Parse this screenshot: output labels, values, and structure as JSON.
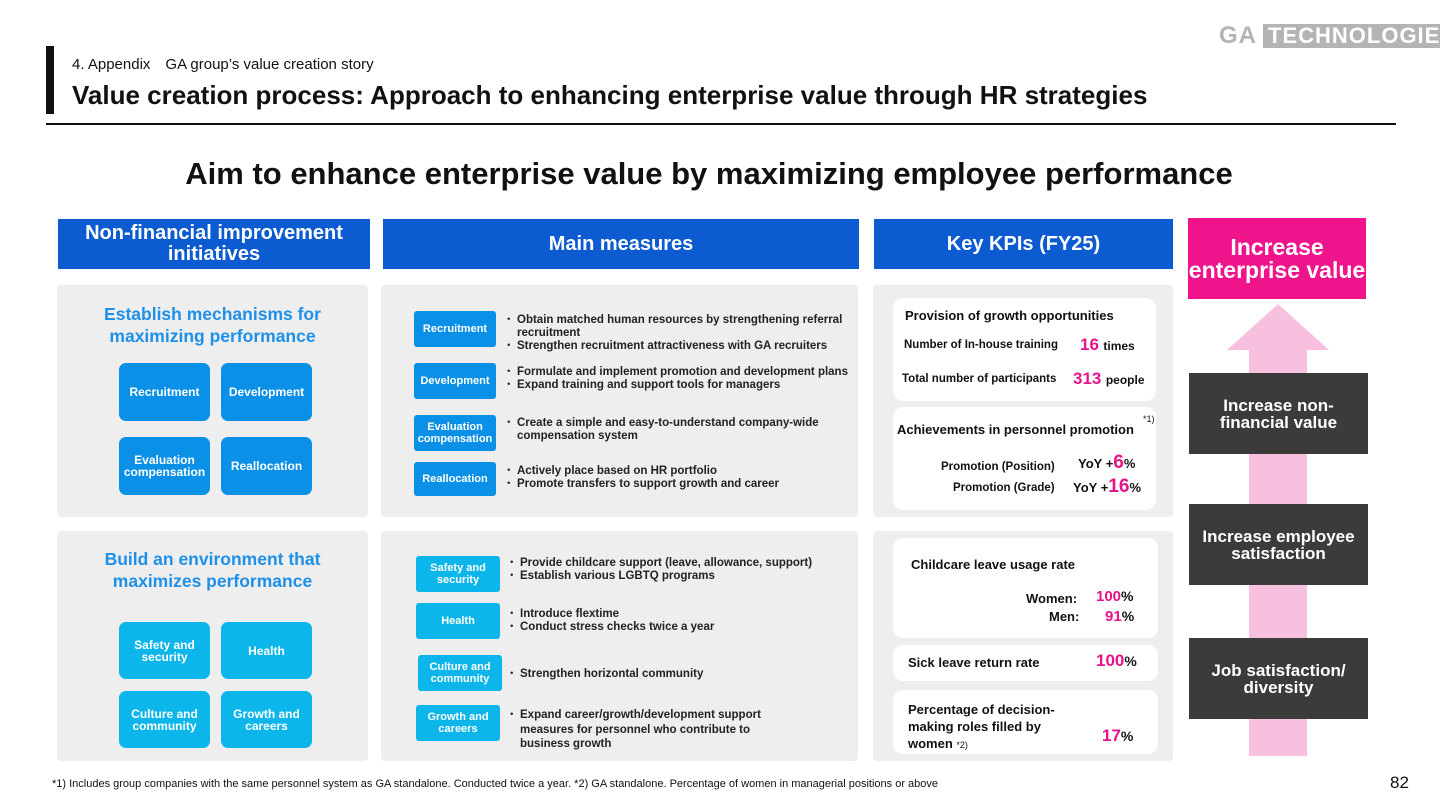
{
  "header": {
    "section": "4. Appendix　GA group’s value creation story",
    "title": "Value creation process: Approach to enhancing enterprise value through HR strategies",
    "logo_ga": "GA",
    "logo_tech": "TECHNOLOGIES"
  },
  "headline": "Aim to enhance enterprise value by maximizing employee performance",
  "columns": {
    "nonfinancial": "Non-financial improvement initiatives",
    "measures": "Main measures",
    "kpis": "Key KPIs (FY25)"
  },
  "initiatives": {
    "performance": {
      "title": "Establish mechanisms for maximizing performance",
      "tiles": [
        "Recruitment",
        "Development",
        "Evaluation compensation",
        "Reallocation"
      ]
    },
    "environment": {
      "title": "Build an environment that maximizes performance",
      "tiles": [
        "Safety and security",
        "Health",
        "Culture and community",
        "Growth and careers"
      ]
    }
  },
  "measures": {
    "recruitment": {
      "tag": "Recruitment",
      "b1": "Obtain matched human resources by strengthening referral recruitment",
      "b2": "Strengthen recruitment attractiveness with GA recruiters"
    },
    "development": {
      "tag": "Development",
      "b1": "Formulate and implement promotion and development plans",
      "b2": "Expand training and support tools for managers"
    },
    "evaluation": {
      "tag": "Evaluation compensation",
      "b1": "Create a simple and easy-to-understand company-wide compensation system"
    },
    "reallocation": {
      "tag": "Reallocation",
      "b1": "Actively place based on HR portfolio",
      "b2": "Promote transfers to support growth and career"
    },
    "safety": {
      "tag": "Safety and security",
      "b1": "Provide childcare support (leave, allowance, support)",
      "b2": "Establish various LGBTQ programs"
    },
    "health": {
      "tag": "Health",
      "b1": "Introduce flextime",
      "b2": "Conduct stress checks twice a year"
    },
    "culture": {
      "tag": "Culture and community",
      "b1": "Strengthen horizontal community"
    },
    "growth": {
      "tag": "Growth and careers",
      "b1": "Expand career/growth/development support measures for personnel who contribute to business growth"
    }
  },
  "kpis": {
    "growth": {
      "title": "Provision of growth opportunities",
      "training_label": "Number of In-house training",
      "training_value": "16",
      "training_unit": "times",
      "participants_label": "Total number of participants",
      "participants_value": "313",
      "participants_unit": "people"
    },
    "promotion": {
      "title": "Achievements in personnel promotion",
      "note": "*1)",
      "position_label": "Promotion (Position)",
      "position_prefix": "YoY +",
      "position_value": "6",
      "position_unit": "%",
      "grade_label": "Promotion (Grade)",
      "grade_prefix": "YoY +",
      "grade_value": "16",
      "grade_unit": "%"
    },
    "childcare": {
      "title": "Childcare leave usage rate",
      "women_label": "Women:",
      "women_value": "100",
      "women_unit": "%",
      "men_label": "Men:",
      "men_value": "91",
      "men_unit": "%"
    },
    "sick": {
      "label": "Sick leave return rate",
      "value": "100",
      "unit": "%"
    },
    "women_roles": {
      "label": "Percentage of decision-making roles filled by women",
      "note": "*2)",
      "value": "17",
      "unit": "%"
    }
  },
  "value_stack": {
    "top": "Increase enterprise value",
    "nonfinancial": "Increase non-financial value",
    "employee": "Increase employee satisfaction",
    "job": "Job satisfaction/ diversity"
  },
  "colors": {
    "column_head": "#0d5bd0",
    "tile_blue": "#0a90e6",
    "tile_cyan": "#0cb6ea",
    "highlight": "#e6148c",
    "dark_box": "#3b3b3b"
  },
  "footnote": "*1) Includes group companies with the same personnel system as GA standalone. Conducted twice a year. *2) GA standalone. Percentage of women in managerial positions or above",
  "page_number": "82"
}
